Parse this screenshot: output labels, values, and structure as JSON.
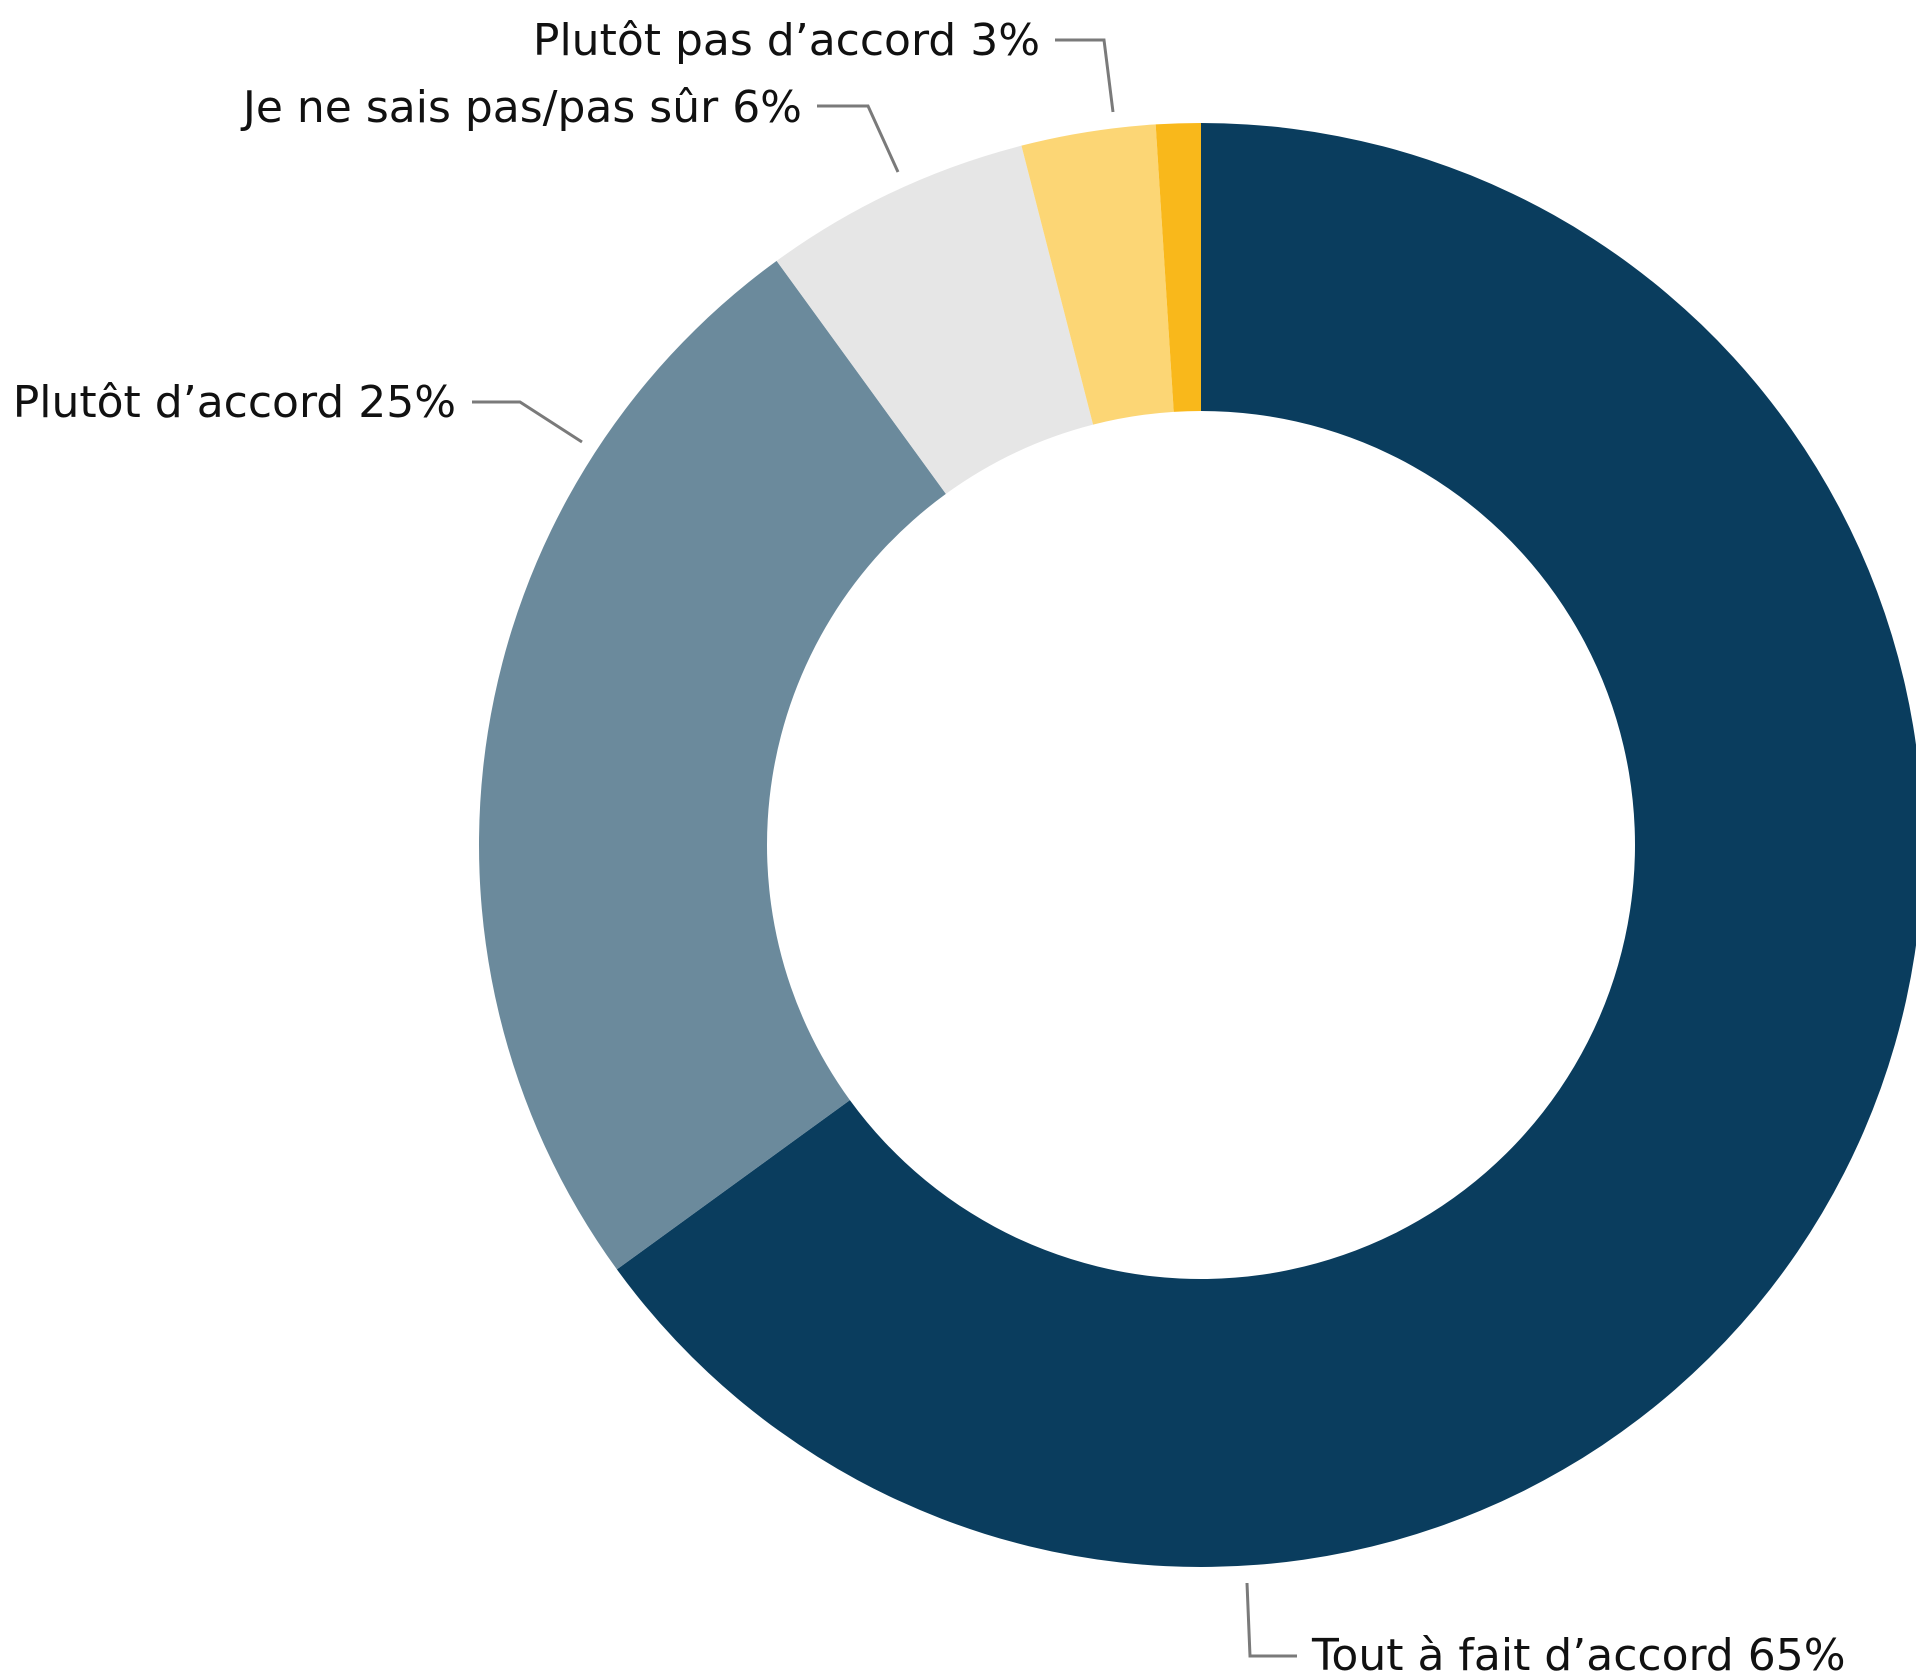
{
  "chart_data": {
    "type": "pie",
    "variant": "donut",
    "title": "",
    "slices": [
      {
        "label": "Tout à fait d’accord",
        "value": 65,
        "display": "Tout à fait d’accord 65%",
        "color": "#0a3d5e"
      },
      {
        "label": "Plutôt d’accord",
        "value": 25,
        "display": "Plutôt d’accord 25%",
        "color": "#6b8a9c"
      },
      {
        "label": "Je ne sais pas/pas sûr",
        "value": 6,
        "display": "Je ne sais pas/pas sûr 6%",
        "color": "#e6e6e6"
      },
      {
        "label": "Plutôt pas d’accord",
        "value": 3,
        "display": "Plutôt pas d’accord 3%",
        "color": "#fcd675"
      },
      {
        "label": "",
        "value": 1,
        "display": "",
        "color": "#f9b81b"
      }
    ],
    "start": "top",
    "direction": "clockwise",
    "legend": "none"
  }
}
